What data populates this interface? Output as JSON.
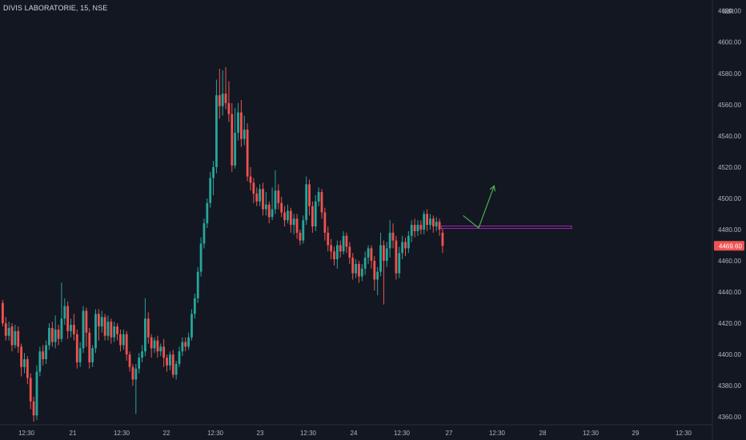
{
  "header": {
    "symbol": "DIVIS LABORATORIE",
    "interval": "15",
    "exchange": "NSE",
    "currency": "INR"
  },
  "colors": {
    "background": "#131722",
    "up": "#26a69a",
    "down": "#ef5350",
    "text": "#b2b5be",
    "axis_line": "#2a2e39",
    "support_line": "#9c27b0",
    "arrow": "#4caf50",
    "price_label_bg": "#ef5350"
  },
  "chart_data": {
    "type": "candlestick",
    "y_ticks": [
      "4360.00",
      "4380.00",
      "4400.00",
      "4420.00",
      "4440.00",
      "4460.00",
      "4480.00",
      "4500.00",
      "4520.00",
      "4540.00",
      "4560.00",
      "4580.00",
      "4600.00",
      "4620.00"
    ],
    "y_tick_values": [
      4360,
      4380,
      4400,
      4420,
      4440,
      4460,
      4480,
      4500,
      4520,
      4540,
      4560,
      4580,
      4600,
      4620
    ],
    "ylim": [
      4355,
      4627
    ],
    "x_ticks": [
      "12:30",
      "21",
      "12:30",
      "22",
      "12:30",
      "23",
      "12:30",
      "24",
      "12:30",
      "27",
      "12:30",
      "28",
      "12:30",
      "29",
      "12:30"
    ],
    "last_price_label": "4469.60",
    "last_price": 4469.6,
    "candles": [
      [
        4433,
        4420,
        4435,
        4418
      ],
      [
        4420,
        4412,
        4424,
        4409
      ],
      [
        4412,
        4417,
        4421,
        4409
      ],
      [
        4418,
        4406,
        4420,
        4402
      ],
      [
        4406,
        4415,
        4419,
        4404
      ],
      [
        4415,
        4405,
        4418,
        4401
      ],
      [
        4405,
        4392,
        4407,
        4386
      ],
      [
        4392,
        4397,
        4401,
        4388
      ],
      [
        4397,
        4385,
        4399,
        4381
      ],
      [
        4385,
        4370,
        4388,
        4365
      ],
      [
        4370,
        4361,
        4373,
        4357
      ],
      [
        4361,
        4389,
        4393,
        4358
      ],
      [
        4389,
        4402,
        4405,
        4386
      ],
      [
        4402,
        4397,
        4406,
        4393
      ],
      [
        4397,
        4406,
        4409,
        4394
      ],
      [
        4406,
        4417,
        4420,
        4403
      ],
      [
        4417,
        4408,
        4421,
        4405
      ],
      [
        4408,
        4416,
        4425,
        4404
      ],
      [
        4416,
        4410,
        4419,
        4406
      ],
      [
        4410,
        4423,
        4446,
        4408
      ],
      [
        4423,
        4431,
        4436,
        4419
      ],
      [
        4431,
        4415,
        4434,
        4410
      ],
      [
        4415,
        4419,
        4423,
        4411
      ],
      [
        4419,
        4413,
        4426,
        4409
      ],
      [
        4413,
        4395,
        4416,
        4391
      ],
      [
        4395,
        4404,
        4408,
        4392
      ],
      [
        4404,
        4428,
        4431,
        4401
      ],
      [
        4428,
        4414,
        4430,
        4405
      ],
      [
        4414,
        4395,
        4417,
        4391
      ],
      [
        4395,
        4404,
        4406,
        4392
      ],
      [
        4404,
        4426,
        4429,
        4401
      ],
      [
        4426,
        4418,
        4429,
        4409
      ],
      [
        4418,
        4424,
        4428,
        4414
      ],
      [
        4424,
        4412,
        4426,
        4409
      ],
      [
        4412,
        4421,
        4425,
        4409
      ],
      [
        4421,
        4411,
        4423,
        4407
      ],
      [
        4411,
        4418,
        4421,
        4408
      ],
      [
        4418,
        4413,
        4420,
        4409
      ],
      [
        4413,
        4406,
        4416,
        4402
      ],
      [
        4406,
        4413,
        4416,
        4403
      ],
      [
        4413,
        4400,
        4415,
        4396
      ],
      [
        4400,
        4392,
        4402,
        4389
      ],
      [
        4392,
        4384,
        4394,
        4380
      ],
      [
        4384,
        4391,
        4394,
        4362
      ],
      [
        4391,
        4398,
        4401,
        4388
      ],
      [
        4398,
        4402,
        4406,
        4395
      ],
      [
        4402,
        4423,
        4436,
        4399
      ],
      [
        4423,
        4411,
        4427,
        4407
      ],
      [
        4411,
        4404,
        4413,
        4398
      ],
      [
        4404,
        4409,
        4411,
        4401
      ],
      [
        4409,
        4402,
        4412,
        4398
      ],
      [
        4402,
        4405,
        4407,
        4399
      ],
      [
        4405,
        4398,
        4410,
        4392
      ],
      [
        4398,
        4393,
        4400,
        4389
      ],
      [
        4393,
        4400,
        4402,
        4390
      ],
      [
        4400,
        4387,
        4403,
        4385
      ],
      [
        4387,
        4394,
        4396,
        4384
      ],
      [
        4394,
        4402,
        4405,
        4392
      ],
      [
        4402,
        4408,
        4411,
        4399
      ],
      [
        4408,
        4405,
        4411,
        4402
      ],
      [
        4405,
        4411,
        4414,
        4403
      ],
      [
        4411,
        4426,
        4429,
        4409
      ],
      [
        4426,
        4436,
        4439,
        4423
      ],
      [
        4436,
        4453,
        4456,
        4433
      ],
      [
        4453,
        4471,
        4475,
        4450
      ],
      [
        4471,
        4484,
        4487,
        4468
      ],
      [
        4484,
        4497,
        4500,
        4481
      ],
      [
        4497,
        4513,
        4517,
        4494
      ],
      [
        4513,
        4520,
        4524,
        4502
      ],
      [
        4520,
        4566,
        4576,
        4516
      ],
      [
        4566,
        4559,
        4583,
        4551
      ],
      [
        4559,
        4567,
        4582,
        4553
      ],
      [
        4567,
        4561,
        4584,
        4557
      ],
      [
        4561,
        4554,
        4575,
        4549
      ],
      [
        4554,
        4521,
        4561,
        4517
      ],
      [
        4521,
        4542,
        4558,
        4519
      ],
      [
        4542,
        4555,
        4561,
        4537
      ],
      [
        4555,
        4538,
        4563,
        4533
      ],
      [
        4538,
        4544,
        4553,
        4534
      ],
      [
        4544,
        4514,
        4548,
        4511
      ],
      [
        4514,
        4510,
        4520,
        4505
      ],
      [
        4510,
        4503,
        4513,
        4497
      ],
      [
        4503,
        4498,
        4507,
        4495
      ],
      [
        4498,
        4506,
        4509,
        4495
      ],
      [
        4506,
        4493,
        4510,
        4489
      ],
      [
        4493,
        4496,
        4504,
        4489
      ],
      [
        4496,
        4488,
        4498,
        4484
      ],
      [
        4488,
        4493,
        4507,
        4486
      ],
      [
        4493,
        4505,
        4518,
        4490
      ],
      [
        4505,
        4497,
        4509,
        4493
      ],
      [
        4497,
        4491,
        4501,
        4488
      ],
      [
        4491,
        4486,
        4495,
        4482
      ],
      [
        4486,
        4492,
        4496,
        4484
      ],
      [
        4492,
        4483,
        4494,
        4478
      ],
      [
        4483,
        4487,
        4490,
        4477
      ],
      [
        4487,
        4478,
        4490,
        4474
      ],
      [
        4478,
        4473,
        4480,
        4470
      ],
      [
        4473,
        4486,
        4489,
        4471
      ],
      [
        4486,
        4509,
        4514,
        4483
      ],
      [
        4509,
        4495,
        4512,
        4489
      ],
      [
        4495,
        4482,
        4498,
        4478
      ],
      [
        4482,
        4498,
        4502,
        4479
      ],
      [
        4498,
        4504,
        4507,
        4495
      ],
      [
        4504,
        4491,
        4506,
        4487
      ],
      [
        4491,
        4478,
        4494,
        4473
      ],
      [
        4478,
        4470,
        4482,
        4466
      ],
      [
        4470,
        4466,
        4474,
        4461
      ],
      [
        4466,
        4461,
        4469,
        4457
      ],
      [
        4461,
        4470,
        4473,
        4455
      ],
      [
        4470,
        4466,
        4473,
        4462
      ],
      [
        4466,
        4476,
        4479,
        4464
      ],
      [
        4476,
        4469,
        4478,
        4465
      ],
      [
        4469,
        4462,
        4472,
        4458
      ],
      [
        4462,
        4452,
        4465,
        4448
      ],
      [
        4452,
        4458,
        4461,
        4449
      ],
      [
        4458,
        4450,
        4460,
        4446
      ],
      [
        4450,
        4455,
        4458,
        4447
      ],
      [
        4455,
        4462,
        4466,
        4451
      ],
      [
        4462,
        4468,
        4470,
        4458
      ],
      [
        4468,
        4460,
        4470,
        4455
      ],
      [
        4460,
        4448,
        4463,
        4441
      ],
      [
        4448,
        4453,
        4456,
        4438
      ],
      [
        4453,
        4470,
        4478,
        4450
      ],
      [
        4470,
        4460,
        4473,
        4432
      ],
      [
        4460,
        4468,
        4472,
        4456
      ],
      [
        4468,
        4478,
        4486,
        4462
      ],
      [
        4478,
        4473,
        4484,
        4468
      ],
      [
        4473,
        4452,
        4476,
        4448
      ],
      [
        4452,
        4465,
        4469,
        4449
      ],
      [
        4465,
        4472,
        4476,
        4461
      ],
      [
        4472,
        4468,
        4475,
        4463
      ],
      [
        4468,
        4476,
        4479,
        4465
      ],
      [
        4476,
        4483,
        4486,
        4472
      ],
      [
        4483,
        4479,
        4487,
        4475
      ],
      [
        4479,
        4483,
        4486,
        4476
      ],
      [
        4483,
        4480,
        4486,
        4477
      ],
      [
        4480,
        4490,
        4492,
        4477
      ],
      [
        4490,
        4483,
        4493,
        4479
      ],
      [
        4483,
        4487,
        4490,
        4480
      ],
      [
        4487,
        4482,
        4489,
        4478
      ],
      [
        4482,
        4485,
        4488,
        4479
      ],
      [
        4485,
        4480,
        4487,
        4476
      ],
      [
        4478,
        4469.6,
        4481,
        4465
      ]
    ],
    "support_line": {
      "price": 4481.5,
      "x_start_index": 142,
      "x_end_index": 184
    },
    "arrow": {
      "points": [
        [
          149,
          4489
        ],
        [
          154,
          4481
        ],
        [
          159,
          4508
        ]
      ]
    }
  }
}
